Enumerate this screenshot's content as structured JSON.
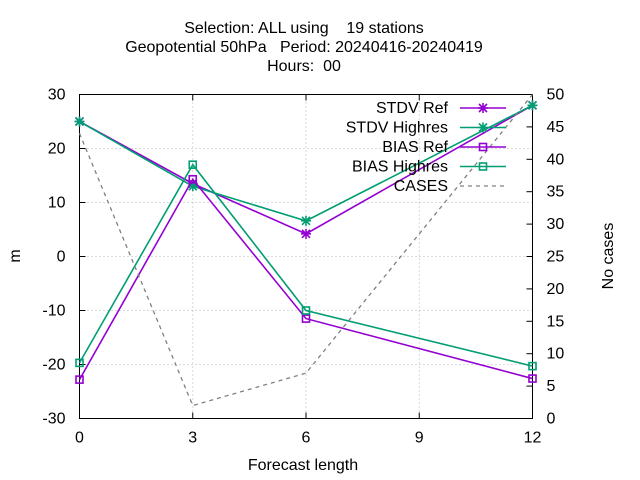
{
  "chart_data": {
    "type": "line",
    "title": "Selection: ALL using    19 stations",
    "subtitle": "Geopotential 50hPa   Period: 20240416-20240419",
    "subtitle2": "Hours:  00",
    "xlabel": "Forecast length",
    "ylabel": "m",
    "y2label": "No cases",
    "x": [
      0,
      3,
      6,
      12
    ],
    "xlim": [
      0,
      12
    ],
    "xticks": [
      0,
      3,
      6,
      9,
      12
    ],
    "ylim": [
      -30,
      30
    ],
    "yticks": [
      -30,
      -20,
      -10,
      0,
      10,
      20,
      30
    ],
    "y2lim": [
      0,
      50
    ],
    "y2ticks": [
      0,
      5,
      10,
      15,
      20,
      25,
      30,
      35,
      40,
      45,
      50
    ],
    "grid": true,
    "legend_position": "top-right",
    "series": [
      {
        "name": "STDV Ref",
        "color": "#9400d3",
        "marker": "star",
        "axis": "y",
        "dash": "solid",
        "values": [
          25,
          13.5,
          4.2,
          28
        ]
      },
      {
        "name": "STDV Highres",
        "color": "#009e73",
        "marker": "star",
        "axis": "y",
        "dash": "solid",
        "values": [
          25,
          13,
          6.6,
          28
        ]
      },
      {
        "name": "BIAS Ref",
        "color": "#9400d3",
        "marker": "square",
        "axis": "y",
        "dash": "solid",
        "values": [
          -22.8,
          14.3,
          -11.5,
          -22.6
        ]
      },
      {
        "name": "BIAS Highres",
        "color": "#009e73",
        "marker": "square",
        "axis": "y",
        "dash": "solid",
        "values": [
          -19.7,
          17,
          -10,
          -20.3
        ]
      },
      {
        "name": "CASES",
        "color": "#808080",
        "marker": "none",
        "axis": "y2",
        "dash": "dashed",
        "values": [
          44,
          2,
          7,
          50
        ]
      }
    ]
  }
}
